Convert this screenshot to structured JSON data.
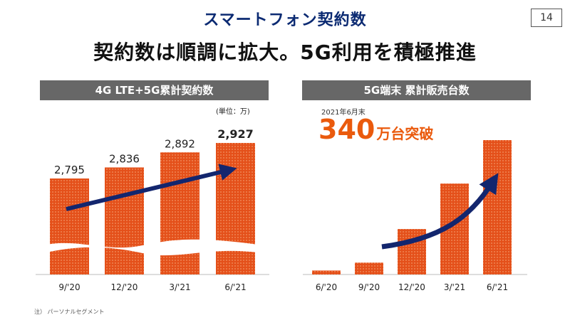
{
  "slide": {
    "title": "スマートフォン契約数",
    "page_number": "14",
    "headline": "契約数は順調に拡大。5G利用を積極推進",
    "footnote": "注） パーソナルセグメント"
  },
  "colors": {
    "title": "#0b2a72",
    "bar": "#e4501a",
    "bar_light": "#f39565",
    "arrow": "#13266e",
    "panel_header": "#676767",
    "highlight": "#ea5a0d"
  },
  "chart_data": [
    {
      "type": "bar",
      "title": "4G LTE+5G累計契約数",
      "unit_label": "(単位：万)",
      "categories": [
        "9/'20",
        "12/'20",
        "3/'21",
        "6/'21"
      ],
      "values": [
        2795,
        2836,
        2892,
        2927
      ],
      "value_labels": [
        "2,795",
        "2,836",
        "2,892",
        "2,927"
      ],
      "axis_break": true,
      "trend_arrow": true
    },
    {
      "type": "bar",
      "title": "5G端末 累計販売台数",
      "as_of": "2021年6月末",
      "highlight_value": "340",
      "highlight_suffix": "万台突破",
      "categories": [
        "6/'20",
        "9/'20",
        "12/'20",
        "3/'21",
        "6/'21"
      ],
      "values": [
        10,
        30,
        115,
        230,
        340
      ],
      "trend_arrow": true
    }
  ]
}
